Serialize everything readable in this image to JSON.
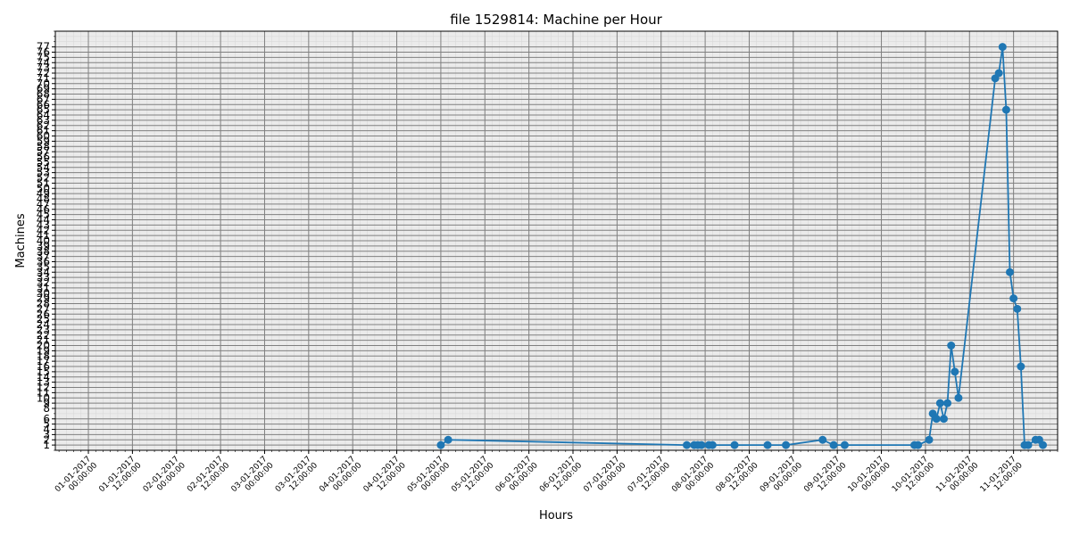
{
  "chart_data": {
    "type": "line",
    "title": "file 1529814: Machine per Hour",
    "xlabel": "Hours",
    "ylabel": "Machines",
    "grid": true,
    "x_ticks": [
      {
        "t": 0,
        "line1": "01-01-2017",
        "line2": "00:00:00"
      },
      {
        "t": 12,
        "line1": "01-01-2017",
        "line2": "12:00:00"
      },
      {
        "t": 24,
        "line1": "02-01-2017",
        "line2": "00:00:00"
      },
      {
        "t": 36,
        "line1": "02-01-2017",
        "line2": "12:00:00"
      },
      {
        "t": 48,
        "line1": "03-01-2017",
        "line2": "00:00:00"
      },
      {
        "t": 60,
        "line1": "03-01-2017",
        "line2": "12:00:00"
      },
      {
        "t": 72,
        "line1": "04-01-2017",
        "line2": "00:00:00"
      },
      {
        "t": 84,
        "line1": "04-01-2017",
        "line2": "12:00:00"
      },
      {
        "t": 96,
        "line1": "05-01-2017",
        "line2": "00:00:00"
      },
      {
        "t": 108,
        "line1": "05-01-2017",
        "line2": "12:00:00"
      },
      {
        "t": 120,
        "line1": "06-01-2017",
        "line2": "00:00:00"
      },
      {
        "t": 132,
        "line1": "06-01-2017",
        "line2": "12:00:00"
      },
      {
        "t": 144,
        "line1": "07-01-2017",
        "line2": "00:00:00"
      },
      {
        "t": 156,
        "line1": "07-01-2017",
        "line2": "12:00:00"
      },
      {
        "t": 168,
        "line1": "08-01-2017",
        "line2": "00:00:00"
      },
      {
        "t": 180,
        "line1": "08-01-2017",
        "line2": "12:00:00"
      },
      {
        "t": 192,
        "line1": "09-01-2017",
        "line2": "00:00:00"
      },
      {
        "t": 204,
        "line1": "09-01-2017",
        "line2": "12:00:00"
      },
      {
        "t": 216,
        "line1": "10-01-2017",
        "line2": "00:00:00"
      },
      {
        "t": 228,
        "line1": "10-01-2017",
        "line2": "12:00:00"
      },
      {
        "t": 240,
        "line1": "11-01-2017",
        "line2": "00:00:00"
      },
      {
        "t": 252,
        "line1": "11-01-2017",
        "line2": "12:00:00"
      }
    ],
    "x_range_hours": [
      -9,
      264
    ],
    "ylim": [
      0,
      80
    ],
    "y_tick_labels": [
      1,
      2,
      3,
      4,
      5,
      6,
      8,
      9,
      10,
      11,
      12,
      13,
      14,
      15,
      16,
      17,
      18,
      19,
      20,
      21,
      22,
      23,
      24,
      25,
      26,
      27,
      28,
      29,
      30,
      31,
      32,
      33,
      34,
      35,
      36,
      37,
      38,
      39,
      40,
      41,
      42,
      43,
      44,
      45,
      46,
      47,
      48,
      49,
      50,
      51,
      52,
      53,
      54,
      55,
      56,
      57,
      58,
      59,
      60,
      61,
      62,
      63,
      64,
      65,
      66,
      67,
      68,
      69,
      70,
      71,
      72,
      73,
      74,
      75,
      76,
      77
    ],
    "series": [
      {
        "name": "Machines",
        "color": "#1f77b4",
        "points": [
          {
            "h": 96,
            "y": 1
          },
          {
            "h": 98,
            "y": 2
          },
          {
            "h": 163,
            "y": 1
          },
          {
            "h": 165,
            "y": 1
          },
          {
            "h": 166,
            "y": 1
          },
          {
            "h": 167,
            "y": 1
          },
          {
            "h": 169,
            "y": 1
          },
          {
            "h": 170,
            "y": 1
          },
          {
            "h": 176,
            "y": 1
          },
          {
            "h": 185,
            "y": 1
          },
          {
            "h": 190,
            "y": 1
          },
          {
            "h": 200,
            "y": 2
          },
          {
            "h": 203,
            "y": 1
          },
          {
            "h": 206,
            "y": 1
          },
          {
            "h": 225,
            "y": 1
          },
          {
            "h": 226,
            "y": 1
          },
          {
            "h": 229,
            "y": 2
          },
          {
            "h": 230,
            "y": 7
          },
          {
            "h": 231,
            "y": 6
          },
          {
            "h": 232,
            "y": 9
          },
          {
            "h": 233,
            "y": 6
          },
          {
            "h": 234,
            "y": 9
          },
          {
            "h": 235,
            "y": 20
          },
          {
            "h": 236,
            "y": 15
          },
          {
            "h": 237,
            "y": 10
          },
          {
            "h": 247,
            "y": 71
          },
          {
            "h": 248,
            "y": 72
          },
          {
            "h": 249,
            "y": 77
          },
          {
            "h": 250,
            "y": 65
          },
          {
            "h": 251,
            "y": 34
          },
          {
            "h": 252,
            "y": 29
          },
          {
            "h": 253,
            "y": 27
          },
          {
            "h": 254,
            "y": 16
          },
          {
            "h": 255,
            "y": 1
          },
          {
            "h": 256,
            "y": 1
          },
          {
            "h": 258,
            "y": 2
          },
          {
            "h": 259,
            "y": 2
          },
          {
            "h": 260,
            "y": 1
          }
        ]
      }
    ]
  }
}
